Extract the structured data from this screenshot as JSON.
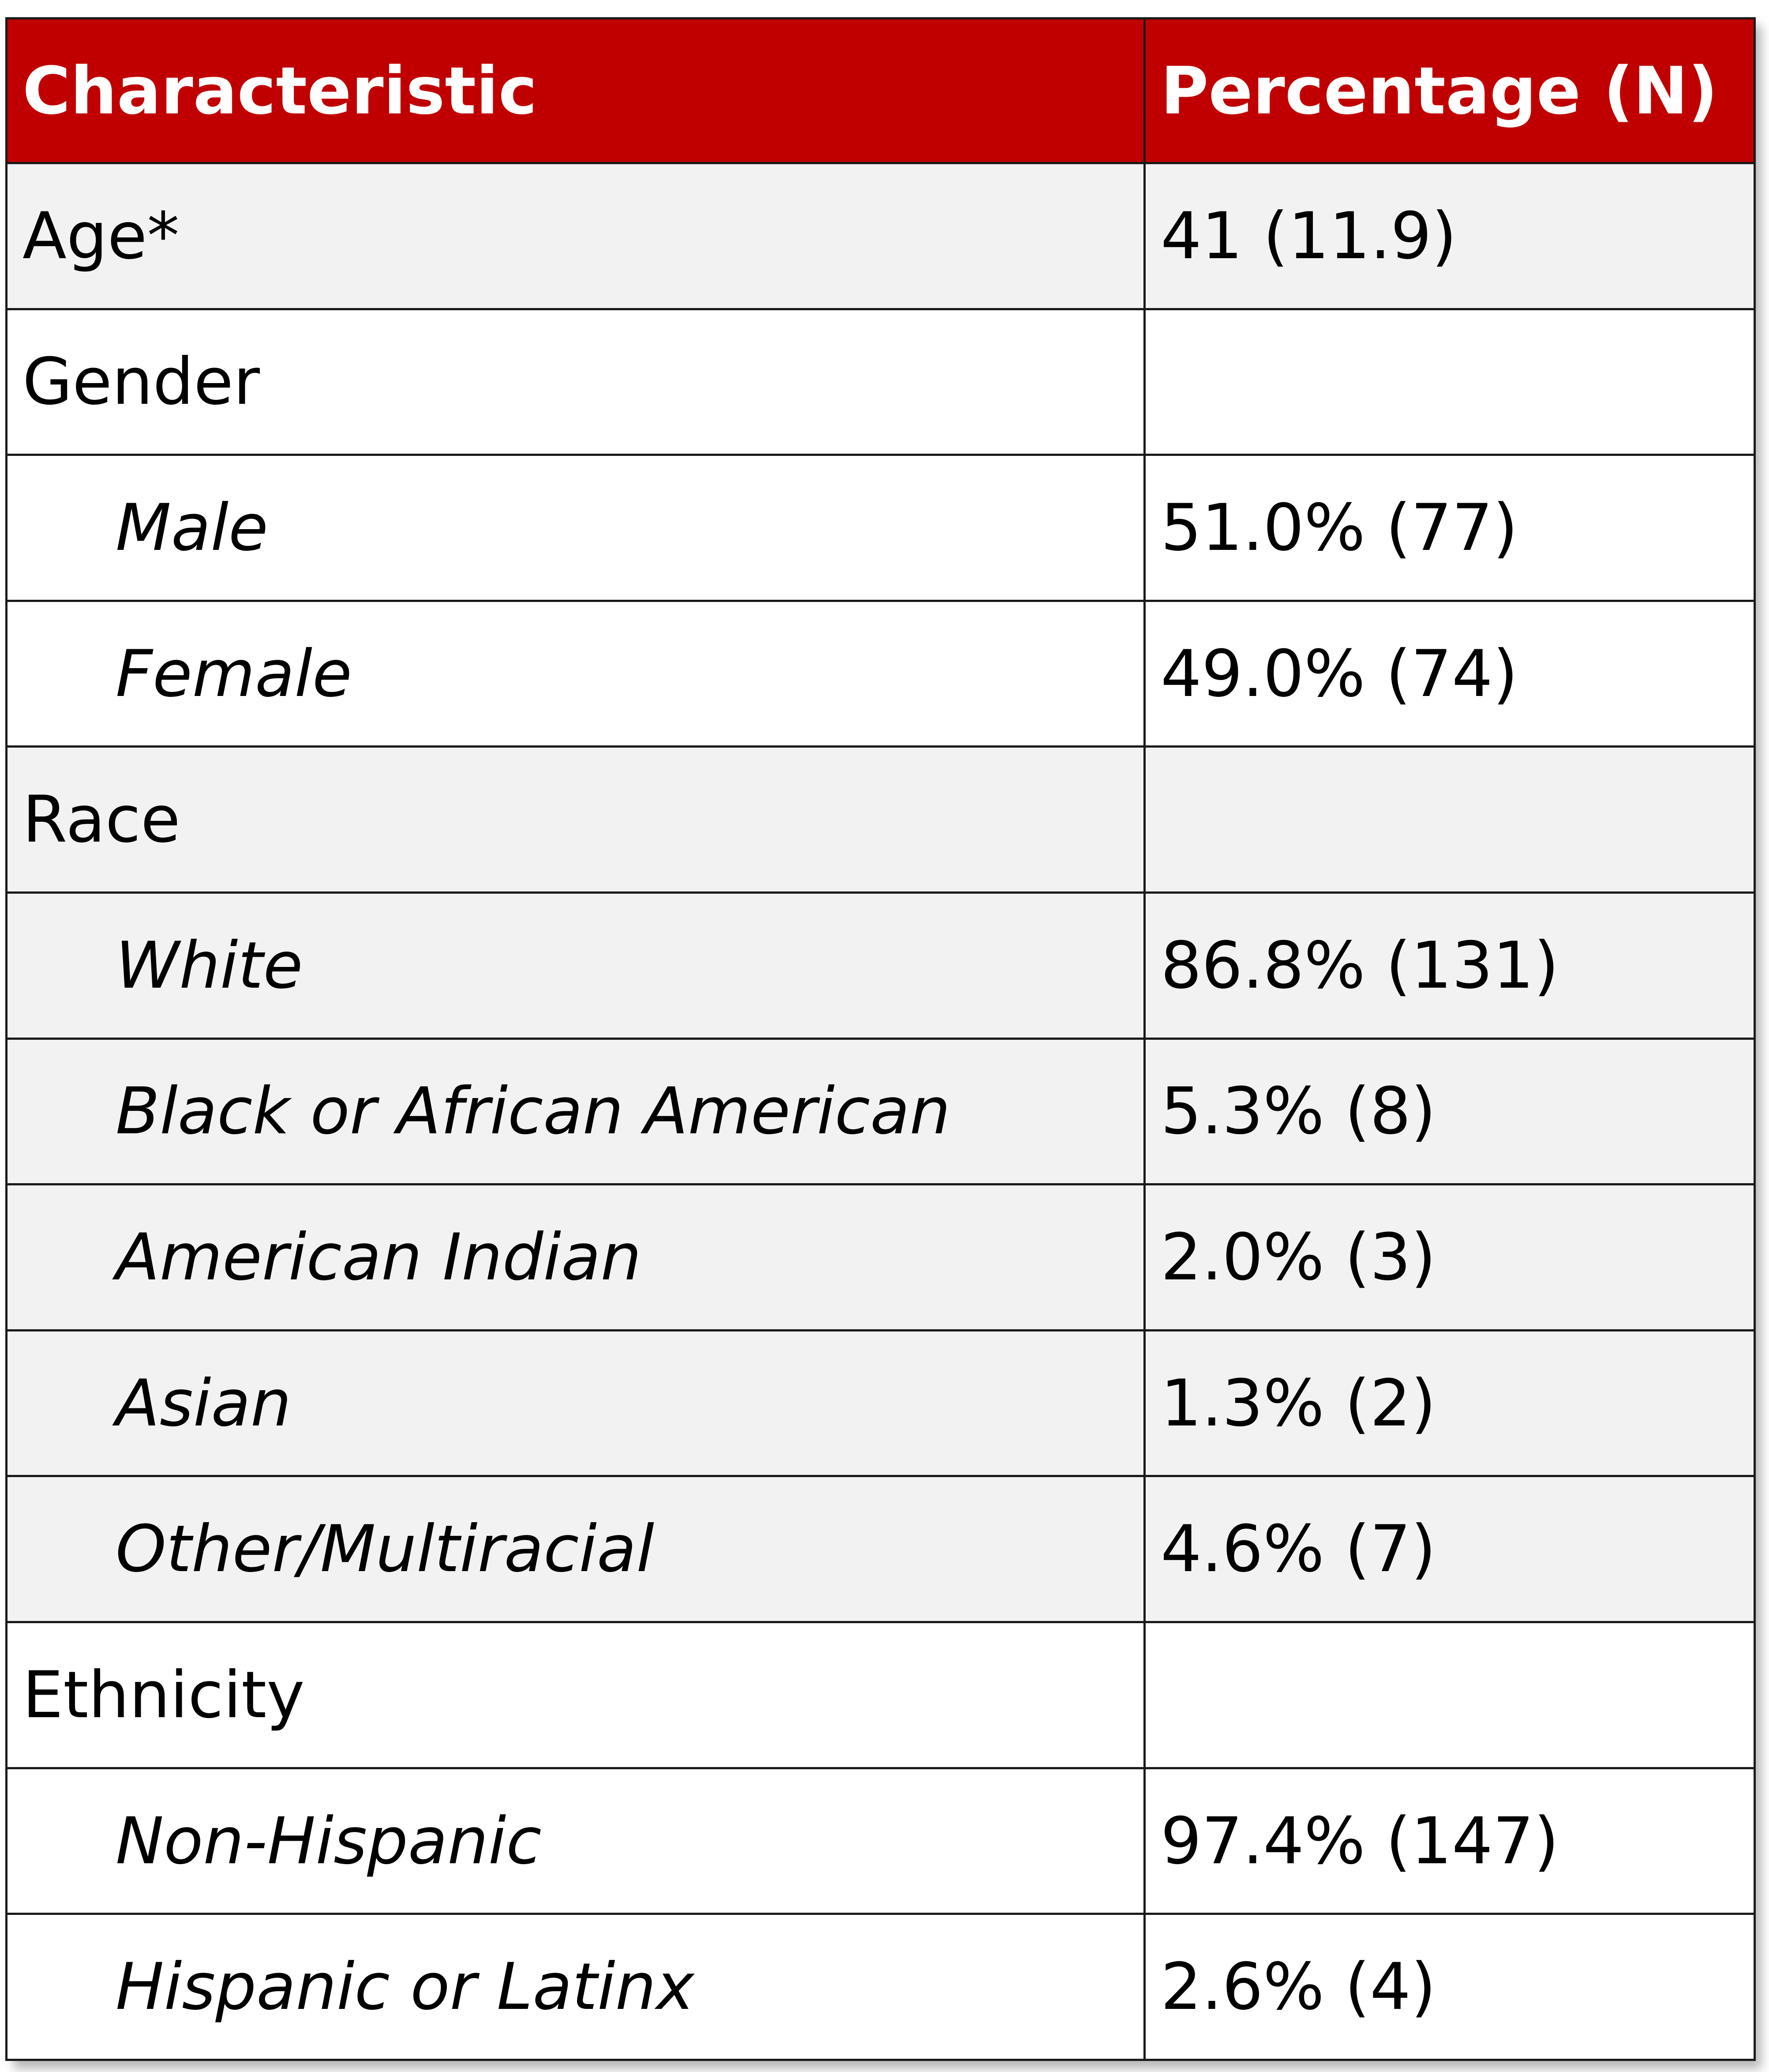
{
  "table": {
    "headers": [
      "Characteristic",
      "Percentage (N)"
    ],
    "rows": [
      {
        "label": "Age*",
        "value": "41  (11.9)",
        "indent": false,
        "shaded": true
      },
      {
        "label": "Gender",
        "value": "",
        "indent": false,
        "shaded": false
      },
      {
        "label": "Male",
        "value": "51.0% (77)",
        "indent": true,
        "shaded": false
      },
      {
        "label": "Female",
        "value": "49.0% (74)",
        "indent": true,
        "shaded": false
      },
      {
        "label": "Race",
        "value": "",
        "indent": false,
        "shaded": true
      },
      {
        "label": "White",
        "value": "86.8% (131)",
        "indent": true,
        "shaded": true
      },
      {
        "label": "Black or African American",
        "value": "5.3% (8)",
        "indent": true,
        "shaded": true
      },
      {
        "label": "American Indian",
        "value": "2.0% (3)",
        "indent": true,
        "shaded": true
      },
      {
        "label": "Asian",
        "value": "1.3% (2)",
        "indent": true,
        "shaded": true
      },
      {
        "label": "Other/Multiracial",
        "value": "4.6% (7)",
        "indent": true,
        "shaded": true
      },
      {
        "label": "Ethnicity",
        "value": "",
        "indent": false,
        "shaded": false
      },
      {
        "label": "Non-Hispanic",
        "value": "97.4% (147)",
        "indent": true,
        "shaded": false
      },
      {
        "label": "Hispanic or Latinx",
        "value": "2.6% (4)",
        "indent": true,
        "shaded": false
      }
    ]
  },
  "colors": {
    "header_background": "#c00000",
    "header_text": "#ffffff",
    "shaded_row": "#f2f2f2",
    "plain_row": "#ffffff",
    "border": "#1a1a1a"
  }
}
